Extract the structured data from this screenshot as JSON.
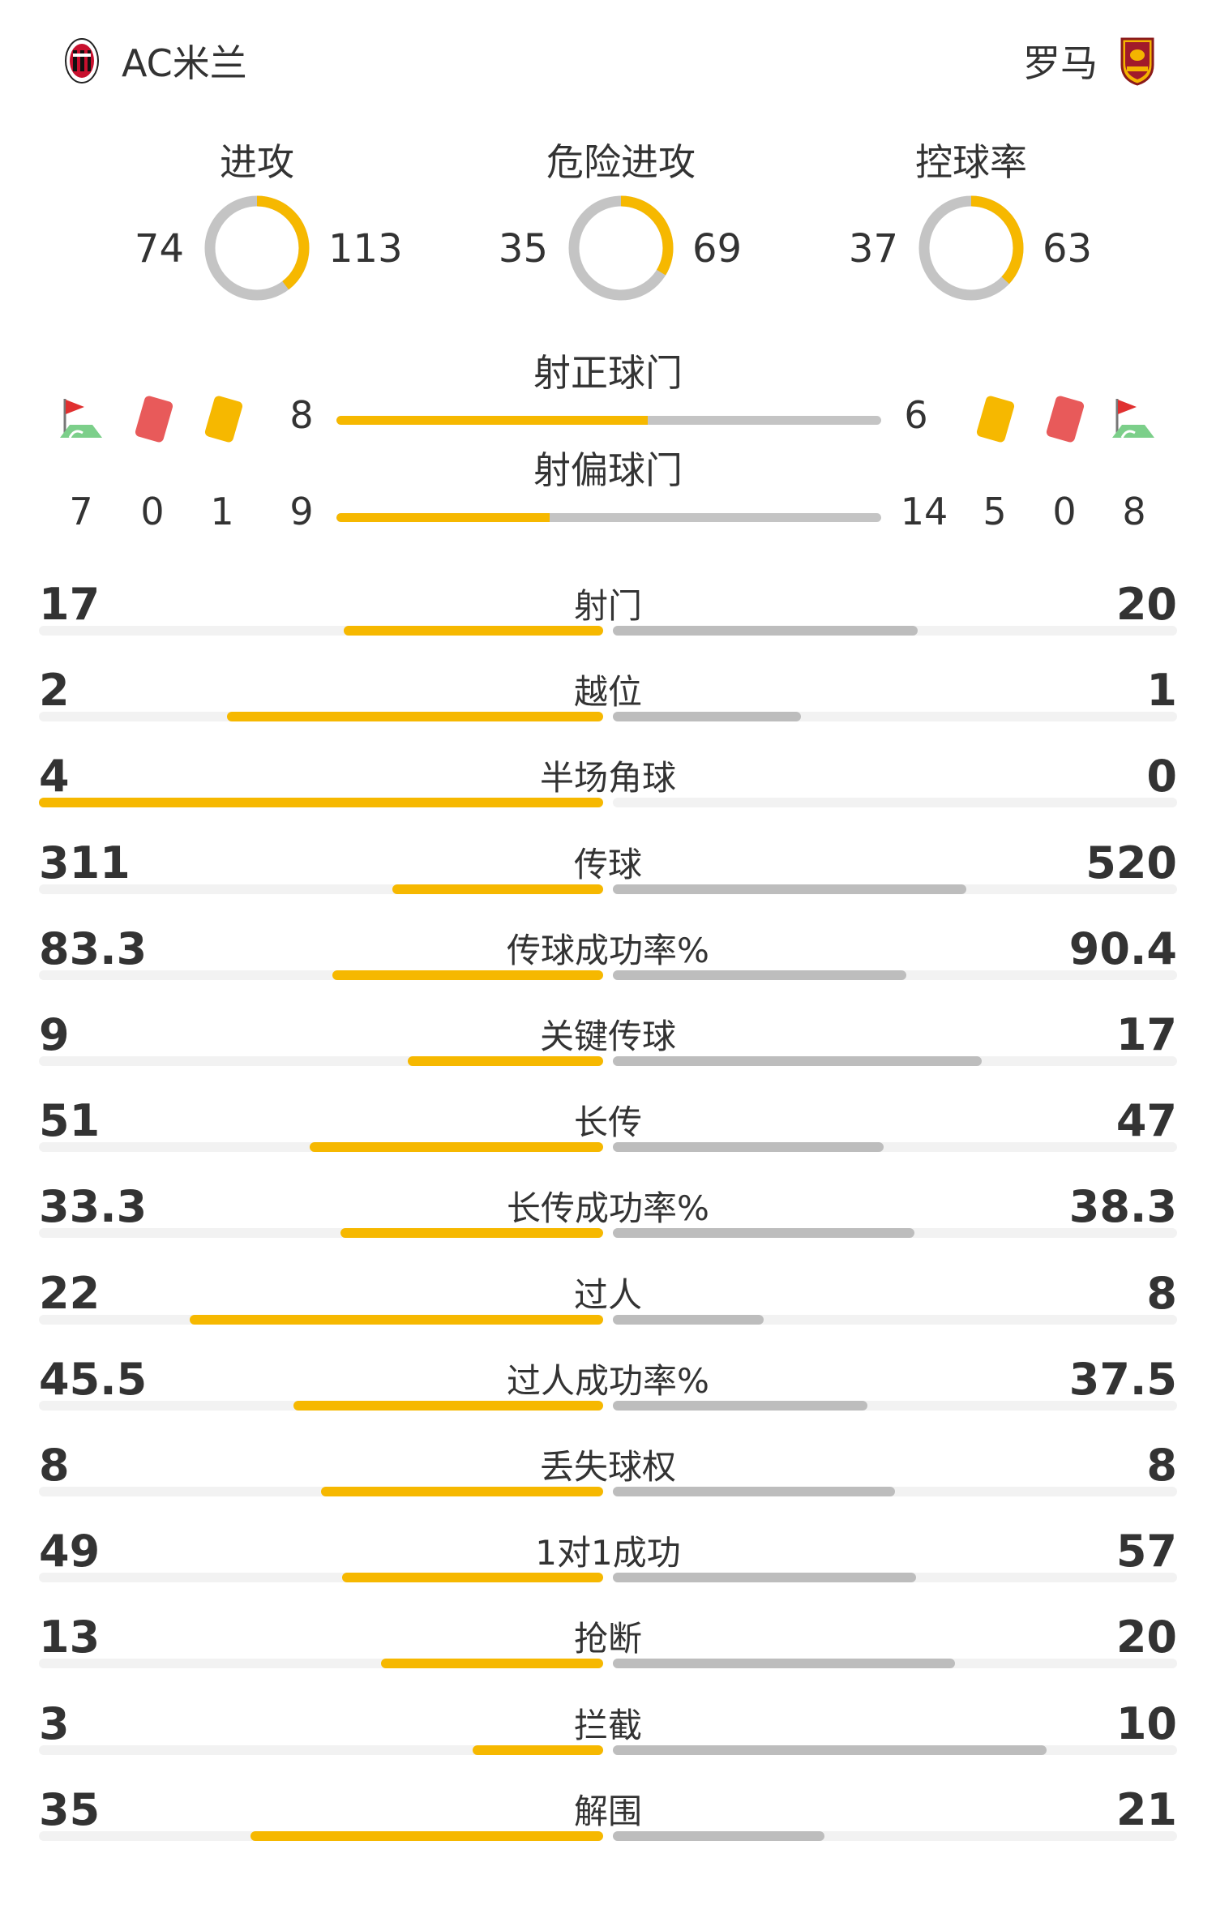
{
  "colors": {
    "home": "#f6b800",
    "away": "#bdbdbd",
    "track": "#f2f2f2",
    "text": "#333333"
  },
  "header": {
    "home_team": "AC米兰",
    "away_team": "罗马",
    "home_logo_icon": "ac-milan-crest-icon",
    "away_logo_icon": "as-roma-crest-icon"
  },
  "donuts": [
    {
      "title": "进攻",
      "home": 74,
      "away": 113
    },
    {
      "title": "危险进攻",
      "home": 35,
      "away": 69
    },
    {
      "title": "控球率",
      "home": 37,
      "away": 63
    }
  ],
  "shots_on": {
    "title": "射正球门",
    "home": 8,
    "away": 6
  },
  "shots_off": {
    "title": "射偏球门",
    "home": 9,
    "away": 14
  },
  "cards": {
    "home": {
      "corners": 7,
      "red": 0,
      "yellow": 1
    },
    "away": {
      "yellow": 5,
      "red": 0,
      "corners": 8
    }
  },
  "stats": [
    {
      "label": "射门",
      "home": "17",
      "away": "20"
    },
    {
      "label": "越位",
      "home": "2",
      "away": "1"
    },
    {
      "label": "半场角球",
      "home": "4",
      "away": "0"
    },
    {
      "label": "传球",
      "home": "311",
      "away": "520"
    },
    {
      "label": "传球成功率%",
      "home": "83.3",
      "away": "90.4"
    },
    {
      "label": "关键传球",
      "home": "9",
      "away": "17"
    },
    {
      "label": "长传",
      "home": "51",
      "away": "47"
    },
    {
      "label": "长传成功率%",
      "home": "33.3",
      "away": "38.3"
    },
    {
      "label": "过人",
      "home": "22",
      "away": "8"
    },
    {
      "label": "过人成功率%",
      "home": "45.5",
      "away": "37.5"
    },
    {
      "label": "丢失球权",
      "home": "8",
      "away": "8"
    },
    {
      "label": "1对1成功",
      "home": "49",
      "away": "57"
    },
    {
      "label": "抢断",
      "home": "13",
      "away": "20"
    },
    {
      "label": "拦截",
      "home": "3",
      "away": "10"
    },
    {
      "label": "解围",
      "home": "35",
      "away": "21"
    }
  ]
}
